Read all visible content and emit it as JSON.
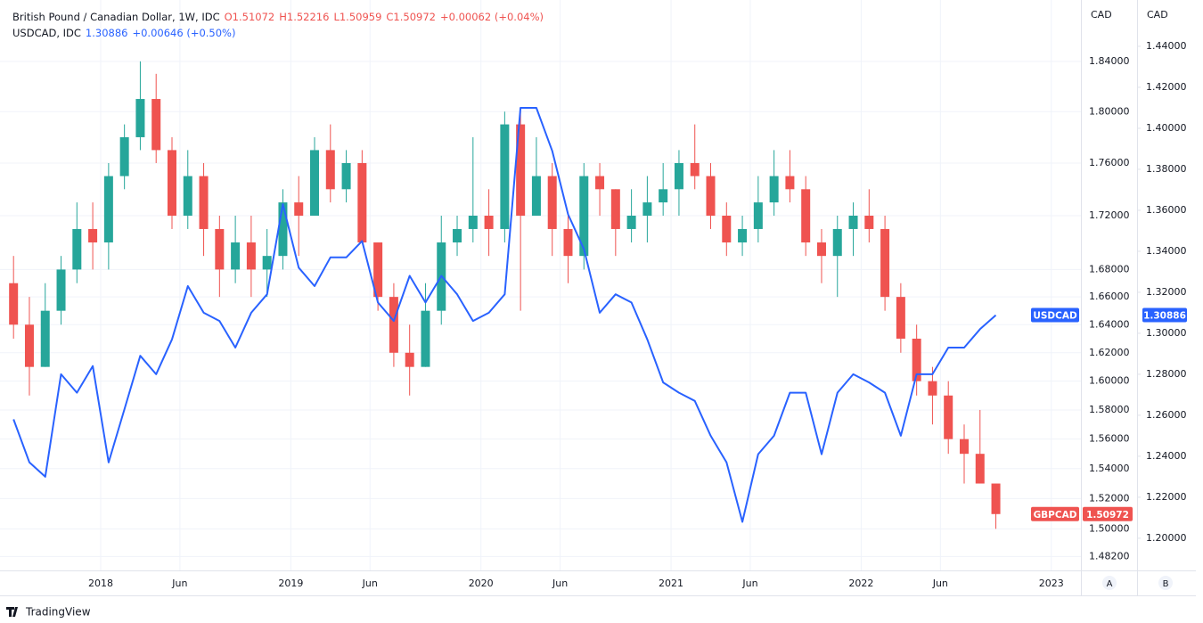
{
  "header": {
    "title": "British Pound / Canadian Dollar, 1W, IDC",
    "ohlc": [
      "O1.51072",
      "H1.52216",
      "L1.50959",
      "C1.50972"
    ],
    "change": "+0.00062 (+0.04%)",
    "title2": "USDCAD, IDC",
    "last2": "1.30886",
    "change2": "+0.00646 (+0.50%)"
  },
  "chart_data": {
    "type": "candlestick",
    "ylabel": "CAD",
    "y2label": "CAD",
    "ylog": true,
    "grid": true,
    "x": [
      "2017-07",
      "2017-08",
      "2017-09",
      "2017-10",
      "2017-11",
      "2017-12",
      "2018-01",
      "2018-02",
      "2018-03",
      "2018-04",
      "2018-05",
      "2018-06",
      "2018-07",
      "2018-08",
      "2018-09",
      "2018-10",
      "2018-11",
      "2018-12",
      "2019-01",
      "2019-02",
      "2019-03",
      "2019-04",
      "2019-05",
      "2019-06",
      "2019-07",
      "2019-08",
      "2019-09",
      "2019-10",
      "2019-11",
      "2019-12",
      "2020-01",
      "2020-02",
      "2020-03",
      "2020-04",
      "2020-05",
      "2020-06",
      "2020-07",
      "2020-08",
      "2020-09",
      "2020-10",
      "2020-11",
      "2020-12",
      "2021-01",
      "2021-02",
      "2021-03",
      "2021-04",
      "2021-05",
      "2021-06",
      "2021-07",
      "2021-08",
      "2021-09",
      "2021-10",
      "2021-11",
      "2021-12",
      "2022-01",
      "2022-02",
      "2022-03",
      "2022-04",
      "2022-05",
      "2022-06",
      "2022-07",
      "2022-08",
      "2022-09"
    ],
    "xlim": [
      "2017-07",
      "2023-03"
    ],
    "xticks": [
      {
        "value": "2018-01",
        "label": "2018"
      },
      {
        "value": "2018-06",
        "label": "Jun"
      },
      {
        "value": "2019-01",
        "label": "2019"
      },
      {
        "value": "2019-06",
        "label": "Jun"
      },
      {
        "value": "2020-01",
        "label": "2020"
      },
      {
        "value": "2020-06",
        "label": "Jun"
      },
      {
        "value": "2021-01",
        "label": "2021"
      },
      {
        "value": "2021-06",
        "label": "Jun"
      },
      {
        "value": "2022-01",
        "label": "2022"
      },
      {
        "value": "2022-06",
        "label": "Jun"
      },
      {
        "value": "2023-01",
        "label": "2023"
      }
    ],
    "ylim": [
      1.473,
      1.89
    ],
    "yticks": [
      {
        "value": 1.482,
        "label": "1.48200"
      },
      {
        "value": 1.5,
        "label": "1.50000"
      },
      {
        "value": 1.52,
        "label": "1.52000"
      },
      {
        "value": 1.54,
        "label": "1.54000"
      },
      {
        "value": 1.56,
        "label": "1.56000"
      },
      {
        "value": 1.58,
        "label": "1.58000"
      },
      {
        "value": 1.6,
        "label": "1.60000"
      },
      {
        "value": 1.62,
        "label": "1.62000"
      },
      {
        "value": 1.64,
        "label": "1.64000"
      },
      {
        "value": 1.66,
        "label": "1.66000"
      },
      {
        "value": 1.68,
        "label": "1.68000"
      },
      {
        "value": 1.72,
        "label": "1.72000"
      },
      {
        "value": 1.76,
        "label": "1.76000"
      },
      {
        "value": 1.8,
        "label": "1.80000"
      },
      {
        "value": 1.84,
        "label": "1.84000"
      }
    ],
    "y2lim": [
      1.1843,
      1.4626
    ],
    "y2ticks": [
      {
        "value": 1.2,
        "label": "1.20000"
      },
      {
        "value": 1.22,
        "label": "1.22000"
      },
      {
        "value": 1.24,
        "label": "1.24000"
      },
      {
        "value": 1.26,
        "label": "1.26000"
      },
      {
        "value": 1.28,
        "label": "1.28000"
      },
      {
        "value": 1.3,
        "label": "1.30000"
      },
      {
        "value": 1.32,
        "label": "1.32000"
      },
      {
        "value": 1.34,
        "label": "1.34000"
      },
      {
        "value": 1.36,
        "label": "1.36000"
      },
      {
        "value": 1.38,
        "label": "1.38000"
      },
      {
        "value": 1.4,
        "label": "1.40000"
      },
      {
        "value": 1.42,
        "label": "1.42000"
      },
      {
        "value": 1.44,
        "label": "1.44000"
      }
    ],
    "series": [
      {
        "name": "GBPCAD",
        "type": "candlestick",
        "color_up": "#26a69a",
        "color_down": "#ef5350",
        "open": [
          1.67,
          1.64,
          1.61,
          1.65,
          1.68,
          1.71,
          1.7,
          1.75,
          1.78,
          1.81,
          1.77,
          1.72,
          1.75,
          1.71,
          1.68,
          1.7,
          1.68,
          1.69,
          1.73,
          1.72,
          1.77,
          1.74,
          1.76,
          1.7,
          1.66,
          1.62,
          1.61,
          1.65,
          1.7,
          1.71,
          1.72,
          1.71,
          1.79,
          1.72,
          1.75,
          1.71,
          1.69,
          1.75,
          1.74,
          1.71,
          1.72,
          1.73,
          1.74,
          1.76,
          1.75,
          1.72,
          1.7,
          1.71,
          1.73,
          1.75,
          1.74,
          1.7,
          1.69,
          1.71,
          1.72,
          1.71,
          1.66,
          1.63,
          1.6,
          1.59,
          1.56,
          1.55,
          1.53
        ],
        "high": [
          1.69,
          1.66,
          1.67,
          1.69,
          1.73,
          1.73,
          1.76,
          1.79,
          1.84,
          1.83,
          1.78,
          1.77,
          1.76,
          1.72,
          1.72,
          1.72,
          1.71,
          1.74,
          1.75,
          1.78,
          1.79,
          1.77,
          1.77,
          1.7,
          1.67,
          1.64,
          1.67,
          1.72,
          1.72,
          1.78,
          1.74,
          1.8,
          1.8,
          1.78,
          1.76,
          1.72,
          1.76,
          1.76,
          1.74,
          1.74,
          1.75,
          1.76,
          1.77,
          1.79,
          1.76,
          1.73,
          1.72,
          1.75,
          1.77,
          1.77,
          1.75,
          1.71,
          1.72,
          1.73,
          1.74,
          1.72,
          1.67,
          1.64,
          1.61,
          1.6,
          1.57,
          1.58,
          1.53
        ],
        "low": [
          1.63,
          1.59,
          1.61,
          1.64,
          1.67,
          1.68,
          1.68,
          1.74,
          1.77,
          1.76,
          1.71,
          1.71,
          1.69,
          1.66,
          1.67,
          1.66,
          1.66,
          1.68,
          1.69,
          1.72,
          1.73,
          1.73,
          1.7,
          1.65,
          1.61,
          1.59,
          1.61,
          1.64,
          1.69,
          1.7,
          1.69,
          1.7,
          1.65,
          1.72,
          1.69,
          1.67,
          1.68,
          1.72,
          1.69,
          1.7,
          1.7,
          1.72,
          1.72,
          1.74,
          1.71,
          1.69,
          1.69,
          1.7,
          1.72,
          1.73,
          1.69,
          1.67,
          1.66,
          1.69,
          1.7,
          1.65,
          1.62,
          1.59,
          1.57,
          1.55,
          1.53,
          1.53,
          1.5
        ],
        "close": [
          1.64,
          1.61,
          1.65,
          1.68,
          1.71,
          1.7,
          1.75,
          1.78,
          1.81,
          1.77,
          1.72,
          1.75,
          1.71,
          1.68,
          1.7,
          1.68,
          1.69,
          1.73,
          1.72,
          1.77,
          1.74,
          1.76,
          1.7,
          1.66,
          1.62,
          1.61,
          1.65,
          1.7,
          1.71,
          1.72,
          1.71,
          1.79,
          1.72,
          1.75,
          1.71,
          1.69,
          1.75,
          1.74,
          1.71,
          1.72,
          1.73,
          1.74,
          1.76,
          1.75,
          1.72,
          1.7,
          1.71,
          1.73,
          1.75,
          1.74,
          1.7,
          1.69,
          1.71,
          1.72,
          1.71,
          1.66,
          1.63,
          1.6,
          1.59,
          1.56,
          1.55,
          1.53,
          1.50972
        ]
      },
      {
        "name": "USDCAD",
        "type": "line",
        "axis": "y2",
        "color": "#2962ff",
        "values": [
          1.258,
          1.237,
          1.23,
          1.28,
          1.271,
          1.284,
          1.237,
          1.263,
          1.289,
          1.28,
          1.297,
          1.323,
          1.31,
          1.306,
          1.293,
          1.31,
          1.319,
          1.363,
          1.332,
          1.323,
          1.337,
          1.337,
          1.345,
          1.315,
          1.306,
          1.328,
          1.315,
          1.328,
          1.319,
          1.306,
          1.31,
          1.319,
          1.41,
          1.41,
          1.389,
          1.358,
          1.341,
          1.31,
          1.319,
          1.315,
          1.297,
          1.276,
          1.271,
          1.267,
          1.25,
          1.237,
          1.208,
          1.241,
          1.25,
          1.271,
          1.271,
          1.241,
          1.271,
          1.28,
          1.276,
          1.271,
          1.25,
          1.28,
          1.28,
          1.293,
          1.293,
          1.302,
          1.30886
        ]
      }
    ]
  },
  "ui": {
    "scale_buttons": [
      "A",
      "B"
    ],
    "brand": "TradingView"
  }
}
